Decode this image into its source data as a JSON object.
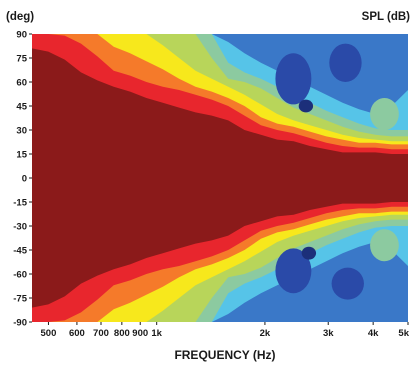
{
  "chart_data": {
    "type": "heatmap",
    "title": "",
    "xlabel": "FREQUENCY (Hz)",
    "ylabel": "(deg)",
    "colorbar_label": "SPL (dB)",
    "x_scale": "log",
    "xlim": [
      450,
      5000
    ],
    "ylim": [
      -90,
      90
    ],
    "x_ticks": [
      {
        "value": 500,
        "label": "500"
      },
      {
        "value": 600,
        "label": "600"
      },
      {
        "value": 700,
        "label": "700"
      },
      {
        "value": 800,
        "label": "800"
      },
      {
        "value": 900,
        "label": "900"
      },
      {
        "value": 1000,
        "label": "1k"
      },
      {
        "value": 2000,
        "label": "2k"
      },
      {
        "value": 3000,
        "label": "3k"
      },
      {
        "value": 4000,
        "label": "4k"
      },
      {
        "value": 5000,
        "label": "5k"
      }
    ],
    "y_ticks": [
      90,
      75,
      60,
      45,
      30,
      15,
      0,
      -15,
      -30,
      -45,
      -60,
      -75,
      -90
    ],
    "levels": [
      {
        "color": "#8b1a1a"
      },
      {
        "color": "#e8262d"
      },
      {
        "color": "#f57a2a"
      },
      {
        "color": "#f7e81c"
      },
      {
        "color": "#b8d55a"
      },
      {
        "color": "#8ccaa0"
      },
      {
        "color": "#56c4e8"
      },
      {
        "color": "#3a78c8"
      },
      {
        "color": "#2a4aa8"
      },
      {
        "color": "#1c2f7a"
      }
    ],
    "level_boundaries": [
      {
        "level": 1,
        "angle": [
          81,
          79,
          74,
          66,
          61,
          57,
          54,
          50,
          47,
          44,
          41,
          39,
          36,
          30,
          27,
          24,
          23,
          20,
          18,
          16,
          16,
          16,
          15,
          15
        ]
      },
      {
        "level": 2,
        "angle": [
          90,
          90,
          89,
          84,
          76,
          67,
          64,
          60,
          57,
          55,
          52,
          49,
          45,
          39,
          33,
          30,
          28,
          25,
          22,
          20,
          19,
          19,
          18,
          18
        ]
      },
      {
        "level": 3,
        "angle": [
          90,
          90,
          90,
          90,
          90,
          82,
          78,
          73,
          68,
          62,
          57,
          54,
          50,
          45,
          38,
          34,
          32,
          29,
          26,
          24,
          22,
          22,
          21,
          21
        ]
      },
      {
        "level": 4,
        "angle": [
          90,
          90,
          90,
          90,
          90,
          90,
          90,
          90,
          83,
          75,
          67,
          62,
          57,
          52,
          46,
          40,
          36,
          33,
          30,
          27,
          25,
          24,
          23,
          23
        ]
      },
      {
        "level": 5,
        "angle": [
          90,
          90,
          90,
          90,
          90,
          90,
          90,
          90,
          90,
          90,
          90,
          75,
          62,
          60,
          56,
          50,
          44,
          40,
          36,
          32,
          29,
          27,
          26,
          26
        ]
      },
      {
        "level": 6,
        "angle": [
          90,
          90,
          90,
          90,
          90,
          90,
          90,
          90,
          90,
          90,
          90,
          90,
          72,
          66,
          62,
          57,
          52,
          47,
          42,
          38,
          34,
          31,
          30,
          30
        ]
      },
      {
        "level": 7,
        "angle": [
          90,
          90,
          90,
          90,
          90,
          90,
          90,
          90,
          90,
          90,
          90,
          90,
          85,
          78,
          72,
          67,
          62,
          57,
          52,
          47,
          43,
          40,
          45,
          55
        ]
      }
    ],
    "islands": [
      {
        "level": 8,
        "center": [
          2400,
          62
        ],
        "size": [
          0.05,
          16
        ]
      },
      {
        "level": 8,
        "center": [
          3350,
          72
        ],
        "size": [
          0.045,
          12
        ]
      },
      {
        "level": 9,
        "center": [
          2600,
          45
        ],
        "size": [
          0.02,
          4
        ]
      },
      {
        "level": 5,
        "center": [
          4300,
          40
        ],
        "size": [
          0.04,
          10
        ]
      },
      {
        "level": 8,
        "center": [
          2400,
          -58
        ],
        "size": [
          0.05,
          14
        ]
      },
      {
        "level": 8,
        "center": [
          3400,
          -66
        ],
        "size": [
          0.045,
          10
        ]
      },
      {
        "level": 9,
        "center": [
          2650,
          -47
        ],
        "size": [
          0.02,
          4
        ]
      },
      {
        "level": 5,
        "center": [
          4300,
          -42
        ],
        "size": [
          0.04,
          10
        ]
      }
    ]
  }
}
